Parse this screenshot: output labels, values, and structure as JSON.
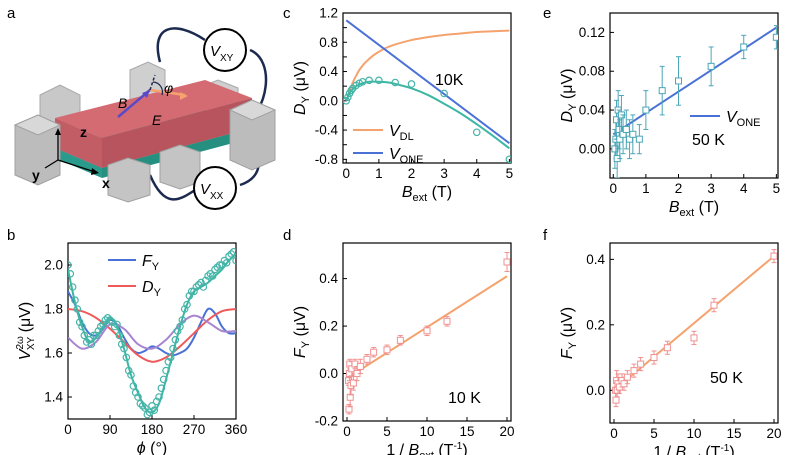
{
  "colors": {
    "blue": "#4a72d6",
    "orange": "#f5a36e",
    "red": "#ee5a5a",
    "purple": "#a885d0",
    "teal": "#3bb7a4",
    "circle": "#45b4a8",
    "sq_blue": "#4aa6b8",
    "sq_orange": "#f09090",
    "device_red": "#d46a72",
    "device_teal": "#2fae9e",
    "gray": "#bfbfbf",
    "wire": "#1c2a4f"
  },
  "panels": {
    "a": {
      "letter": "a",
      "labels": {
        "vxy_main": "V",
        "vxy_sub": "XY",
        "vxx_main": "V",
        "vxx_sub": "XX",
        "phi": "φ",
        "B": "B",
        "E": "E",
        "z": "z",
        "y": "y",
        "x": "x"
      }
    },
    "b": {
      "letter": "b",
      "legend": [
        {
          "main": "F",
          "sub": "Y",
          "color": "#4a72d6"
        },
        {
          "main": "D",
          "sub": "Y",
          "color": "#ee5a5a"
        }
      ]
    },
    "c": {
      "letter": "c"
    },
    "d": {
      "letter": "d"
    },
    "e": {
      "letter": "e"
    },
    "f": {
      "letter": "f"
    }
  },
  "chart_data": [
    {
      "id": "b",
      "type": "line",
      "xlim": [
        0,
        360
      ],
      "ylim": [
        1.3,
        2.1
      ],
      "xticks": [
        0,
        90,
        180,
        270,
        360
      ],
      "yticks": [
        1.4,
        1.6,
        1.8,
        2.0
      ],
      "xlabel_main": "ϕ",
      "xlabel_unit": " (°)",
      "ylabel_main": "V",
      "ylabel_sup": "2ω",
      "ylabel_sub": "XY",
      "ylabel_unit": " (μV)",
      "series": [
        {
          "name": "F",
          "color": "#4a72d6",
          "x": [
            0,
            15,
            30,
            45,
            60,
            75,
            90,
            105,
            120,
            135,
            150,
            165,
            180,
            195,
            210,
            225,
            240,
            255,
            270,
            285,
            300,
            315,
            330,
            345,
            360
          ],
          "y": [
            1.88,
            1.82,
            1.74,
            1.69,
            1.68,
            1.71,
            1.75,
            1.73,
            1.67,
            1.62,
            1.6,
            1.61,
            1.63,
            1.62,
            1.6,
            1.59,
            1.6,
            1.62,
            1.67,
            1.74,
            1.8,
            1.78,
            1.72,
            1.69,
            1.69
          ]
        },
        {
          "name": "D",
          "color": "#ee5a5a",
          "x": [
            0,
            30,
            60,
            90,
            120,
            150,
            180,
            210,
            240,
            270,
            300,
            330,
            360
          ],
          "y": [
            1.8,
            1.79,
            1.76,
            1.71,
            1.65,
            1.59,
            1.56,
            1.58,
            1.63,
            1.69,
            1.75,
            1.79,
            1.8
          ]
        },
        {
          "color": "#a885d0",
          "x": [
            0,
            30,
            60,
            90,
            120,
            150,
            180,
            210,
            240,
            270,
            300,
            330,
            360
          ],
          "y": [
            1.67,
            1.62,
            1.65,
            1.73,
            1.71,
            1.64,
            1.62,
            1.66,
            1.73,
            1.77,
            1.74,
            1.7,
            1.7
          ]
        },
        {
          "color": "#3bb7a4",
          "x": [
            0,
            15,
            30,
            45,
            60,
            75,
            90,
            105,
            120,
            135,
            150,
            165,
            180,
            195,
            210,
            225,
            240,
            255,
            270,
            285,
            300,
            315,
            330,
            345,
            360
          ],
          "y": [
            1.98,
            1.83,
            1.72,
            1.65,
            1.67,
            1.72,
            1.76,
            1.72,
            1.62,
            1.5,
            1.42,
            1.35,
            1.33,
            1.37,
            1.48,
            1.6,
            1.72,
            1.82,
            1.88,
            1.9,
            1.92,
            1.95,
            1.98,
            2.02,
            2.05
          ]
        }
      ],
      "points": {
        "color": "#45b4a8",
        "x": [
          0,
          5,
          10,
          15,
          20,
          25,
          30,
          35,
          40,
          45,
          50,
          55,
          60,
          65,
          70,
          75,
          80,
          85,
          90,
          95,
          100,
          105,
          110,
          115,
          120,
          125,
          130,
          135,
          140,
          145,
          150,
          155,
          160,
          165,
          170,
          175,
          180,
          185,
          190,
          195,
          200,
          205,
          210,
          215,
          220,
          225,
          230,
          235,
          240,
          245,
          250,
          255,
          260,
          265,
          270,
          275,
          280,
          285,
          290,
          295,
          300,
          305,
          310,
          315,
          320,
          325,
          330,
          335,
          340,
          345,
          350,
          355,
          360
        ],
        "y": [
          2.0,
          1.96,
          1.9,
          1.84,
          1.8,
          1.74,
          1.72,
          1.68,
          1.65,
          1.66,
          1.64,
          1.68,
          1.68,
          1.7,
          1.72,
          1.73,
          1.75,
          1.76,
          1.75,
          1.74,
          1.72,
          1.73,
          1.68,
          1.64,
          1.62,
          1.58,
          1.52,
          1.5,
          1.45,
          1.42,
          1.4,
          1.37,
          1.36,
          1.35,
          1.32,
          1.33,
          1.36,
          1.34,
          1.38,
          1.4,
          1.44,
          1.48,
          1.52,
          1.56,
          1.58,
          1.62,
          1.66,
          1.7,
          1.72,
          1.75,
          1.8,
          1.82,
          1.86,
          1.88,
          1.88,
          1.9,
          1.91,
          1.92,
          1.9,
          1.93,
          1.95,
          1.96,
          1.95,
          1.98,
          1.99,
          2.0,
          2.0,
          2.02,
          2.01,
          2.04,
          2.05,
          2.06,
          2.02
        ]
      }
    },
    {
      "id": "c",
      "type": "line",
      "xlim": [
        -0.1,
        5.05
      ],
      "ylim": [
        -0.85,
        1.2
      ],
      "xticks": [
        0,
        1,
        2,
        3,
        4,
        5
      ],
      "yticks": [
        -0.8,
        -0.6,
        -0.4,
        -0.2,
        0.0,
        0.2,
        0.4,
        0.6,
        0.8,
        1.0,
        1.2
      ],
      "ytick_labels": [
        "-0.8",
        "",
        "-0.4",
        "",
        "0.0",
        "",
        "0.4",
        "",
        "0.8",
        "",
        "1.2"
      ],
      "xlabel_main": "B",
      "xlabel_sub": "ext",
      "xlabel_unit": " (T)",
      "ylabel_main": "D",
      "ylabel_sub": "Y",
      "ylabel_unit": " (μV)",
      "annotation": "10K",
      "series": [
        {
          "name": "V",
          "sub": "DL",
          "color": "#f5a36e",
          "x": [
            0,
            0.1,
            0.2,
            0.3,
            0.4,
            0.5,
            0.6,
            0.8,
            1.0,
            1.2,
            1.5,
            2.0,
            2.5,
            3.0,
            3.5,
            4.0,
            4.5,
            5.0
          ],
          "y": [
            0.0,
            0.13,
            0.25,
            0.34,
            0.42,
            0.48,
            0.53,
            0.61,
            0.67,
            0.72,
            0.77,
            0.83,
            0.87,
            0.9,
            0.92,
            0.94,
            0.95,
            0.96
          ]
        },
        {
          "name": "V",
          "sub": "ONE",
          "color": "#4a72d6",
          "x": [
            0,
            5
          ],
          "y": [
            1.1,
            -0.58
          ]
        },
        {
          "color": "#3bb7a4",
          "x": [
            0,
            0.1,
            0.2,
            0.3,
            0.5,
            0.7,
            1.0,
            1.3,
            1.6,
            2.0,
            2.5,
            3.0,
            3.5,
            4.0,
            4.5,
            5.0
          ],
          "y": [
            0.0,
            0.1,
            0.16,
            0.2,
            0.24,
            0.26,
            0.26,
            0.25,
            0.22,
            0.17,
            0.08,
            -0.04,
            -0.17,
            -0.32,
            -0.48,
            -0.65
          ]
        }
      ],
      "points": {
        "color": "#45b4a8",
        "x": [
          0,
          0.05,
          0.1,
          0.15,
          0.2,
          0.3,
          0.4,
          0.5,
          0.7,
          1.0,
          1.5,
          2.0,
          3.0,
          4.0,
          5.0
        ],
        "y": [
          0.0,
          0.05,
          0.1,
          0.14,
          0.17,
          0.21,
          0.24,
          0.26,
          0.28,
          0.28,
          0.25,
          0.23,
          0.1,
          -0.43,
          -0.8
        ]
      }
    },
    {
      "id": "d",
      "type": "scatter",
      "xlim": [
        -0.5,
        20.5
      ],
      "ylim": [
        -0.2,
        0.55
      ],
      "xticks": [
        0,
        5,
        10,
        15,
        20
      ],
      "yticks": [
        -0.2,
        0.0,
        0.2,
        0.4
      ],
      "ytick_labels": [
        "-0.2",
        "0.0",
        "0.2",
        "0.4"
      ],
      "xlabel_pre": "1 / ",
      "xlabel_main": "B",
      "xlabel_sub": "ext",
      "xlabel_unit_pre": " (T",
      "xlabel_unit_sup": "-1",
      "xlabel_unit_post": ")",
      "ylabel_main": "F",
      "ylabel_sub": "Y",
      "ylabel_unit": " (μV)",
      "annotation": "10 K",
      "fit": {
        "color": "#f5a36e",
        "x": [
          0,
          20
        ],
        "y": [
          -0.02,
          0.41
        ]
      },
      "points": {
        "color": "#f09090",
        "x": [
          0.2,
          0.25,
          0.3,
          0.35,
          0.4,
          0.5,
          0.6,
          0.8,
          1.0,
          1.25,
          1.67,
          2.5,
          3.33,
          5.0,
          6.67,
          10.0,
          12.5,
          20.0
        ],
        "y": [
          -0.03,
          -0.15,
          0.0,
          0.04,
          -0.1,
          -0.05,
          0.02,
          -0.04,
          0.04,
          0.0,
          0.03,
          0.06,
          0.09,
          0.1,
          0.14,
          0.18,
          0.22,
          0.47
        ],
        "err": [
          0.02,
          0.02,
          0.03,
          0.02,
          0.04,
          0.04,
          0.03,
          0.03,
          0.02,
          0.03,
          0.03,
          0.02,
          0.02,
          0.02,
          0.02,
          0.02,
          0.02,
          0.04
        ]
      }
    },
    {
      "id": "e",
      "type": "scatter",
      "xlim": [
        -0.1,
        5.05
      ],
      "ylim": [
        -0.03,
        0.14
      ],
      "xticks": [
        0,
        1,
        2,
        3,
        4,
        5
      ],
      "yticks": [
        0.0,
        0.04,
        0.08,
        0.12
      ],
      "ytick_labels": [
        "0.00",
        "0.04",
        "0.08",
        "0.12"
      ],
      "xlabel_main": "B",
      "xlabel_sub": "ext",
      "xlabel_unit": " (T)",
      "ylabel_main": "D",
      "ylabel_sub": "Y",
      "ylabel_unit": " (μV)",
      "annotation": "50 K",
      "fit": {
        "name": "V",
        "sub": "ONE",
        "color": "#4a72d6",
        "x": [
          0,
          5
        ],
        "y": [
          0.015,
          0.125
        ]
      },
      "points": {
        "color": "#4aa6b8",
        "x": [
          0.05,
          0.08,
          0.1,
          0.12,
          0.15,
          0.18,
          0.2,
          0.25,
          0.3,
          0.4,
          0.5,
          0.6,
          0.8,
          1.0,
          1.5,
          2.0,
          3.0,
          4.0,
          5.0
        ],
        "y": [
          0.0,
          0.01,
          0.03,
          -0.01,
          0.04,
          0.02,
          0.01,
          0.035,
          0.015,
          0.02,
          0.01,
          0.015,
          0.01,
          0.04,
          0.06,
          0.07,
          0.085,
          0.105,
          0.115
        ],
        "err": [
          0.02,
          0.02,
          0.02,
          0.02,
          0.02,
          0.02,
          0.02,
          0.02,
          0.02,
          0.02,
          0.02,
          0.02,
          0.015,
          0.02,
          0.025,
          0.025,
          0.02,
          0.012,
          0.012
        ]
      }
    },
    {
      "id": "f",
      "type": "scatter",
      "xlim": [
        -0.5,
        20.5
      ],
      "ylim": [
        -0.1,
        0.45
      ],
      "xticks": [
        0,
        5,
        10,
        15,
        20
      ],
      "yticks": [
        0.0,
        0.2,
        0.4
      ],
      "ytick_labels": [
        "0.0",
        "0.2",
        "0.4"
      ],
      "xlabel_pre": "1 / ",
      "xlabel_main": "B",
      "xlabel_sub": "ext",
      "xlabel_unit_pre": " (T",
      "xlabel_unit_sup": "-1",
      "xlabel_unit_post": ")",
      "ylabel_main": "F",
      "ylabel_sub": "Y",
      "ylabel_unit": " (μV)",
      "annotation": "50 K",
      "fit": {
        "color": "#f5a36e",
        "x": [
          0,
          20
        ],
        "y": [
          0.0,
          0.41
        ]
      },
      "points": {
        "color": "#f09090",
        "x": [
          0.2,
          0.25,
          0.33,
          0.4,
          0.5,
          0.67,
          1.0,
          1.25,
          1.67,
          2.5,
          3.33,
          5.0,
          6.67,
          10.0,
          12.5,
          20.0
        ],
        "y": [
          0.0,
          -0.03,
          0.03,
          0.0,
          0.02,
          0.01,
          0.03,
          0.02,
          0.04,
          0.06,
          0.08,
          0.1,
          0.13,
          0.16,
          0.26,
          0.41
        ],
        "err": [
          0.03,
          0.02,
          0.03,
          0.02,
          0.03,
          0.02,
          0.02,
          0.02,
          0.02,
          0.02,
          0.02,
          0.02,
          0.02,
          0.02,
          0.02,
          0.02
        ]
      }
    }
  ]
}
